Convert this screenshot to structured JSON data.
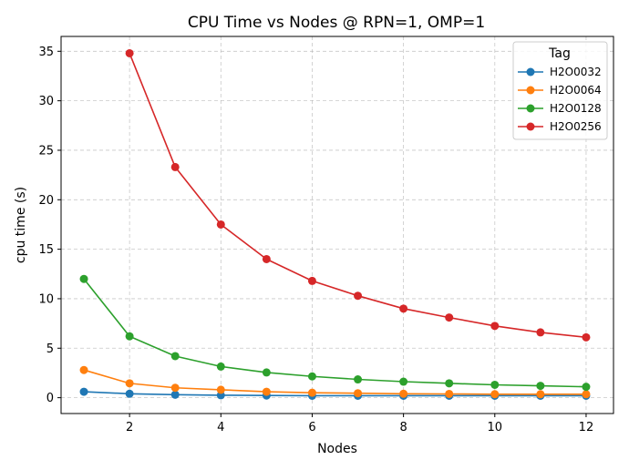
{
  "chart_data": {
    "type": "line",
    "title": "CPU Time vs Nodes @ RPN=1, OMP=1",
    "xlabel": "Nodes",
    "ylabel": "cpu time (s)",
    "xlim": [
      0.5,
      12.6
    ],
    "ylim": [
      -1.6,
      36.5
    ],
    "xticks": [
      2,
      4,
      6,
      8,
      10,
      12
    ],
    "yticks": [
      0,
      5,
      10,
      15,
      20,
      25,
      30,
      35
    ],
    "grid": true,
    "legend": {
      "title": "Tag",
      "position": "top-right"
    },
    "series": [
      {
        "name": "H2O0032",
        "color": "#1f77b4",
        "x": [
          1,
          2,
          3,
          4,
          5,
          6,
          7,
          8,
          9,
          10,
          11,
          12
        ],
        "values": [
          0.6,
          0.4,
          0.3,
          0.25,
          0.22,
          0.2,
          0.2,
          0.2,
          0.2,
          0.2,
          0.2,
          0.2
        ]
      },
      {
        "name": "H2O0064",
        "color": "#ff7f0e",
        "x": [
          1,
          2,
          3,
          4,
          5,
          6,
          7,
          8,
          9,
          10,
          11,
          12
        ],
        "values": [
          2.8,
          1.45,
          1.0,
          0.8,
          0.6,
          0.5,
          0.45,
          0.4,
          0.38,
          0.35,
          0.35,
          0.35
        ]
      },
      {
        "name": "H2O0128",
        "color": "#2ca02c",
        "x": [
          1,
          2,
          3,
          4,
          5,
          6,
          7,
          8,
          9,
          10,
          11,
          12
        ],
        "values": [
          12.0,
          6.2,
          4.2,
          3.15,
          2.55,
          2.15,
          1.85,
          1.62,
          1.45,
          1.3,
          1.2,
          1.1
        ]
      },
      {
        "name": "H2O0256",
        "color": "#d62728",
        "x": [
          2,
          3,
          4,
          5,
          6,
          7,
          8,
          9,
          10,
          11,
          12
        ],
        "values": [
          34.8,
          23.3,
          17.5,
          14.0,
          11.8,
          10.3,
          9.0,
          8.1,
          7.25,
          6.6,
          6.1
        ]
      }
    ]
  }
}
